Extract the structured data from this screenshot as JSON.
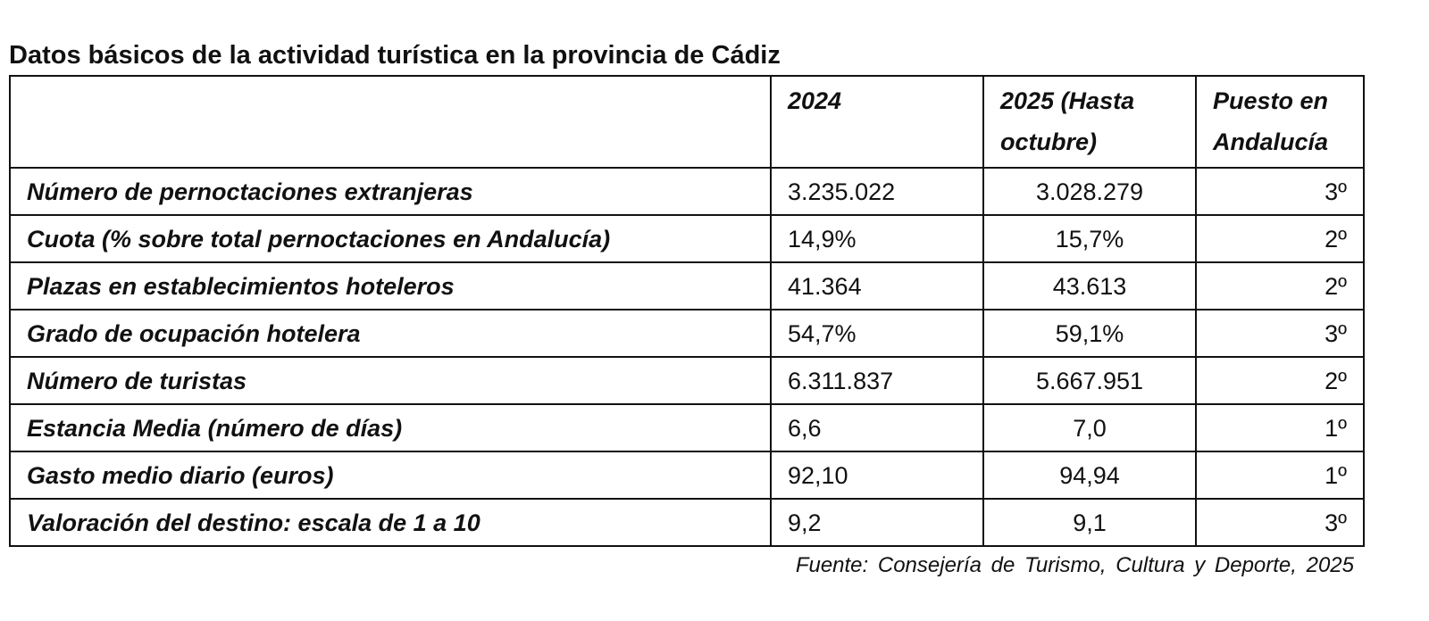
{
  "title": "Datos básicos de la actividad turística en la provincia de Cádiz",
  "table": {
    "headers": [
      "",
      "2024",
      "2025 (Hasta octubre)",
      "Puesto en Andalucía"
    ],
    "rows": [
      {
        "label": "Número de pernoctaciones extranjeras",
        "y2024": "3.235.022",
        "y2025": "3.028.279",
        "rank": "3º"
      },
      {
        "label": "Cuota (% sobre total pernoctaciones en Andalucía)",
        "y2024": "14,9%",
        "y2025": "15,7%",
        "rank": "2º"
      },
      {
        "label": "Plazas en establecimientos hoteleros",
        "y2024": "41.364",
        "y2025": "43.613",
        "rank": "2º"
      },
      {
        "label": "Grado de ocupación hotelera",
        "y2024": "54,7%",
        "y2025": "59,1%",
        "rank": "3º"
      },
      {
        "label": "Número de turistas",
        "y2024": "6.311.837",
        "y2025": "5.667.951",
        "rank": "2º"
      },
      {
        "label": "Estancia Media (número de días)",
        "y2024": "6,6",
        "y2025": "7,0",
        "rank": "1º"
      },
      {
        "label": "Gasto medio diario (euros)",
        "y2024": "92,10",
        "y2025": "94,94",
        "rank": "1º"
      },
      {
        "label": "Valoración del destino: escala de 1 a 10",
        "y2024": "9,2",
        "y2025": "9,1",
        "rank": "3º"
      }
    ]
  },
  "source": "Fuente: Consejería de Turismo, Cultura y Deporte, 2025"
}
